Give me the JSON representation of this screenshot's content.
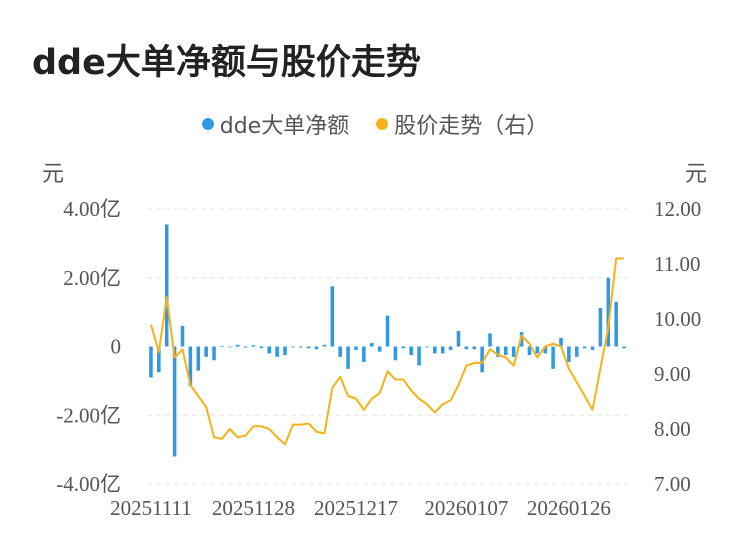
{
  "title": "dde大单净额与股价走势",
  "legend": [
    {
      "label": "dde大单净额",
      "color": "#2f9ae3"
    },
    {
      "label": "股价走势（右）",
      "color": "#f5b31b"
    }
  ],
  "left_unit": "元",
  "right_unit": "元",
  "chart_data": {
    "type": "bar+line",
    "categories": [
      "20251111",
      "20251112",
      "20251113",
      "20251114",
      "20251117",
      "20251118",
      "20251119",
      "20251120",
      "20251121",
      "20251124",
      "20251125",
      "20251126",
      "20251127",
      "20251128",
      "20251201",
      "20251202",
      "20251203",
      "20251204",
      "20251205",
      "20251208",
      "20251209",
      "20251210",
      "20251211",
      "20251212",
      "20251215",
      "20251216",
      "20251217",
      "20251218",
      "20251219",
      "20251222",
      "20251223",
      "20251224",
      "20251225",
      "20251226",
      "20251229",
      "20251230",
      "20251231",
      "20260102",
      "20260105",
      "20260106",
      "20260107",
      "20260108",
      "20260109",
      "20260112",
      "20260113",
      "20260114",
      "20260115",
      "20260116",
      "20260119",
      "20260120",
      "20260121",
      "20260122",
      "20260123",
      "20260126",
      "20260127",
      "20260128",
      "20260129",
      "20260130",
      "20260202",
      "20260203",
      "20260204"
    ],
    "x_tick_labels": [
      "20251111",
      "20251128",
      "20251217",
      "20260107",
      "20260126"
    ],
    "series": [
      {
        "name": "dde大单净额",
        "type": "bar",
        "axis": "left",
        "values": [
          -0.9,
          -0.75,
          3.55,
          -3.2,
          0.6,
          -1.15,
          -0.7,
          -0.3,
          -0.4,
          0.02,
          -0.02,
          0.05,
          -0.03,
          0.04,
          -0.05,
          -0.2,
          -0.3,
          -0.25,
          -0.02,
          -0.03,
          -0.05,
          -0.08,
          0.05,
          1.75,
          -0.3,
          -0.65,
          -0.1,
          -0.45,
          0.1,
          -0.15,
          0.9,
          -0.4,
          -0.05,
          -0.25,
          -0.55,
          -0.02,
          -0.2,
          -0.2,
          -0.1,
          0.45,
          -0.08,
          -0.08,
          -0.75,
          0.38,
          -0.3,
          -0.25,
          -0.3,
          0.42,
          -0.25,
          -0.2,
          -0.2,
          -0.65,
          0.25,
          -0.45,
          -0.3,
          -0.05,
          -0.1,
          1.12,
          2.0,
          1.3,
          -0.05
        ]
      },
      {
        "name": "股价走势（右）",
        "type": "line",
        "axis": "right",
        "values": [
          9.9,
          9.4,
          10.4,
          9.3,
          9.45,
          8.8,
          8.6,
          8.4,
          7.85,
          7.82,
          8.0,
          7.85,
          7.88,
          8.05,
          8.05,
          8.0,
          7.85,
          7.72,
          8.08,
          8.08,
          8.1,
          7.95,
          7.92,
          8.75,
          8.95,
          8.6,
          8.55,
          8.35,
          8.55,
          8.65,
          9.05,
          8.9,
          8.9,
          8.7,
          8.55,
          8.45,
          8.3,
          8.45,
          8.52,
          8.8,
          9.15,
          9.2,
          9.2,
          9.45,
          9.35,
          9.3,
          9.15,
          9.7,
          9.55,
          9.3,
          9.5,
          9.55,
          9.5,
          9.1,
          8.85,
          8.6,
          8.35,
          9.1,
          9.85,
          11.1,
          11.1
        ]
      }
    ],
    "left_axis": {
      "min": -4,
      "max": 4,
      "ticks": [
        "4.00亿",
        "2.00亿",
        "0",
        "-2.00亿",
        "-4.00亿"
      ]
    },
    "right_axis": {
      "min": 7,
      "max": 12,
      "ticks": [
        "12.00",
        "11.00",
        "10.00",
        "9.00",
        "8.00",
        "7.00"
      ]
    },
    "grid": true,
    "legend_position": "top-center"
  }
}
